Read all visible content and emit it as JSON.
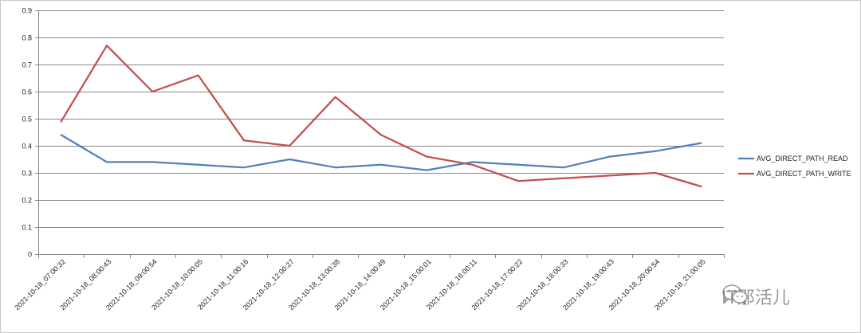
{
  "chart_data": {
    "type": "line",
    "categories": [
      "2021-10-18_07:00:32",
      "2021-10-18_08:00:43",
      "2021-10-18_09:00:54",
      "2021-10-18_10:00:05",
      "2021-10-18_11:00:16",
      "2021-10-18_12:00:27",
      "2021-10-18_13:00:38",
      "2021-10-18_14:00:49",
      "2021-10-18_15:00:01",
      "2021-10-18_16:00:11",
      "2021-10-18_17:00:22",
      "2021-10-18_18:00:33",
      "2021-10-18_19:00:43",
      "2021-10-18_20:00:54",
      "2021-10-18_21:00:05"
    ],
    "series": [
      {
        "name": "AVG_DIRECT_PATH_READ",
        "color": "#4f81bd",
        "values": [
          0.44,
          0.34,
          0.34,
          0.33,
          0.32,
          0.35,
          0.32,
          0.33,
          0.31,
          0.34,
          0.33,
          0.32,
          0.36,
          0.38,
          0.41
        ]
      },
      {
        "name": "AVG_DIRECT_PATH_WRITE",
        "color": "#c0504d",
        "values": [
          0.49,
          0.77,
          0.6,
          0.66,
          0.42,
          0.4,
          0.58,
          0.44,
          0.36,
          0.33,
          0.27,
          0.28,
          0.29,
          0.3,
          0.25
        ]
      }
    ],
    "ylim": [
      0,
      0.9
    ],
    "yticks": [
      "0",
      "0.1",
      "0.2",
      "0.3",
      "0.4",
      "0.5",
      "0.6",
      "0.7",
      "0.8",
      "0.9"
    ],
    "grid": true,
    "legend_position": "right",
    "title": "",
    "xlabel": "",
    "ylabel": ""
  },
  "watermark": {
    "text": "IT那活儿",
    "icon": "wechat-icon"
  }
}
